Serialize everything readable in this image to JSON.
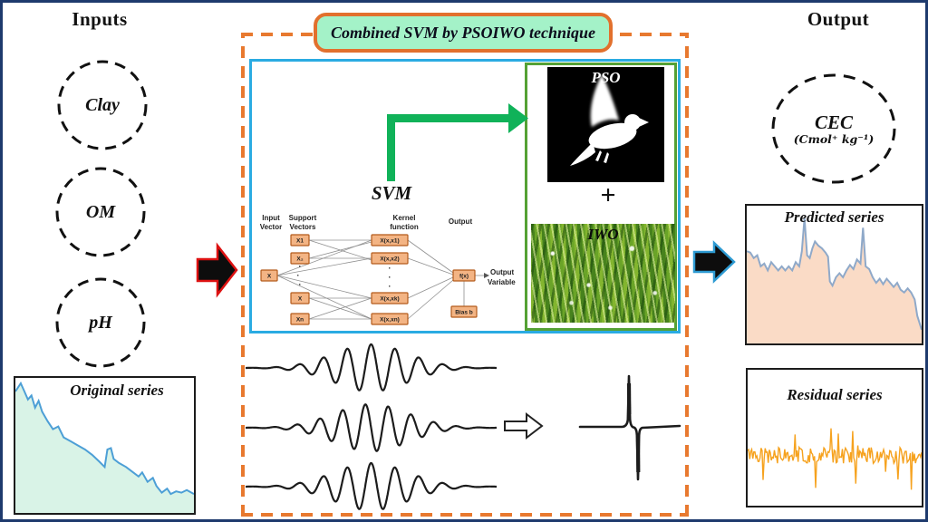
{
  "sections": {
    "inputs_title": "Inputs",
    "output_title": "Output"
  },
  "header": {
    "label": "Combined SVM by PSOIWO technique"
  },
  "inputs": {
    "items": [
      {
        "label": "Clay"
      },
      {
        "label": "OM"
      },
      {
        "label": "pH"
      }
    ]
  },
  "output_node": {
    "label": "CEC",
    "unit": "(Cmol⁺ kg⁻¹)"
  },
  "svm": {
    "title": "SVM",
    "col_input_line1": "Input",
    "col_input_line2": "Vector",
    "col_support_line1": "Support",
    "col_support_line2": "Vectors",
    "col_kernel_line1": "Kernel",
    "col_kernel_line2": "function",
    "col_output": "Output",
    "input_box": "X",
    "support_boxes": [
      "X1",
      "X₂",
      "X",
      "Xn"
    ],
    "kernel_boxes": [
      "X(x,x1)",
      "X(x,x2)",
      "X(x,xk)",
      "X(x,xn)"
    ],
    "fx_box": "f(x)",
    "bias_box": "Bias b",
    "output_var_line1": "Output",
    "output_var_line2": "Variable"
  },
  "optimizers": {
    "pso_label": "PSO",
    "plus": "+",
    "iwo_label": "IWO"
  },
  "charts": {
    "original_title": "Original series",
    "predicted_title": "Predicted series",
    "residual_title": "Residual series"
  },
  "chart_data": {
    "original": {
      "type": "area",
      "points": [
        [
          0,
          0.1
        ],
        [
          0.03,
          0.04
        ],
        [
          0.05,
          0.1
        ],
        [
          0.07,
          0.16
        ],
        [
          0.09,
          0.13
        ],
        [
          0.11,
          0.22
        ],
        [
          0.13,
          0.17
        ],
        [
          0.15,
          0.25
        ],
        [
          0.18,
          0.32
        ],
        [
          0.21,
          0.38
        ],
        [
          0.24,
          0.36
        ],
        [
          0.27,
          0.44
        ],
        [
          0.31,
          0.47
        ],
        [
          0.35,
          0.5
        ],
        [
          0.39,
          0.53
        ],
        [
          0.43,
          0.57
        ],
        [
          0.47,
          0.62
        ],
        [
          0.5,
          0.66
        ],
        [
          0.515,
          0.53
        ],
        [
          0.535,
          0.52
        ],
        [
          0.55,
          0.6
        ],
        [
          0.58,
          0.63
        ],
        [
          0.62,
          0.66
        ],
        [
          0.66,
          0.7
        ],
        [
          0.69,
          0.73
        ],
        [
          0.71,
          0.7
        ],
        [
          0.74,
          0.77
        ],
        [
          0.77,
          0.74
        ],
        [
          0.79,
          0.8
        ],
        [
          0.82,
          0.85
        ],
        [
          0.85,
          0.82
        ],
        [
          0.87,
          0.86
        ],
        [
          0.9,
          0.84
        ],
        [
          0.93,
          0.85
        ],
        [
          0.96,
          0.83
        ],
        [
          1,
          0.86
        ]
      ]
    },
    "predicted": {
      "type": "area",
      "points": [
        [
          0,
          0.33
        ],
        [
          0.02,
          0.34
        ],
        [
          0.04,
          0.38
        ],
        [
          0.06,
          0.36
        ],
        [
          0.08,
          0.44
        ],
        [
          0.1,
          0.42
        ],
        [
          0.12,
          0.47
        ],
        [
          0.14,
          0.41
        ],
        [
          0.16,
          0.44
        ],
        [
          0.18,
          0.47
        ],
        [
          0.2,
          0.44
        ],
        [
          0.22,
          0.47
        ],
        [
          0.24,
          0.44
        ],
        [
          0.26,
          0.47
        ],
        [
          0.28,
          0.41
        ],
        [
          0.3,
          0.44
        ],
        [
          0.315,
          0.33
        ],
        [
          0.33,
          0.09
        ],
        [
          0.345,
          0.36
        ],
        [
          0.36,
          0.38
        ],
        [
          0.375,
          0.31
        ],
        [
          0.39,
          0.26
        ],
        [
          0.41,
          0.29
        ],
        [
          0.43,
          0.31
        ],
        [
          0.45,
          0.34
        ],
        [
          0.465,
          0.37
        ],
        [
          0.475,
          0.55
        ],
        [
          0.49,
          0.58
        ],
        [
          0.51,
          0.52
        ],
        [
          0.53,
          0.49
        ],
        [
          0.55,
          0.52
        ],
        [
          0.57,
          0.47
        ],
        [
          0.59,
          0.43
        ],
        [
          0.61,
          0.46
        ],
        [
          0.63,
          0.39
        ],
        [
          0.65,
          0.42
        ],
        [
          0.665,
          0.16
        ],
        [
          0.68,
          0.44
        ],
        [
          0.7,
          0.46
        ],
        [
          0.72,
          0.52
        ],
        [
          0.74,
          0.56
        ],
        [
          0.76,
          0.53
        ],
        [
          0.78,
          0.57
        ],
        [
          0.8,
          0.53
        ],
        [
          0.82,
          0.56
        ],
        [
          0.84,
          0.59
        ],
        [
          0.86,
          0.56
        ],
        [
          0.88,
          0.61
        ],
        [
          0.9,
          0.63
        ],
        [
          0.92,
          0.6
        ],
        [
          0.94,
          0.63
        ],
        [
          0.96,
          0.68
        ],
        [
          0.975,
          0.8
        ],
        [
          1,
          0.9
        ]
      ]
    },
    "residual": {
      "type": "line",
      "seed": 9,
      "n": 170,
      "amp": 0.06,
      "spike_amp": 0.27,
      "spike_prob": 0.1,
      "center": 0.63
    },
    "wavelets": {
      "count": 3,
      "cycles": [
        10.5,
        11,
        10.5
      ],
      "amplitude": 26
    }
  },
  "colors": {
    "frame_navy": "#1e3a6d",
    "dashed_orange": "#e8792f",
    "header_fill": "#a4f2c8",
    "header_border": "#e2702d",
    "svm_panel_border": "#2aabe2",
    "optimizer_panel_border": "#55a135",
    "flow_green": "#10b259",
    "node_fill": "#f3b484",
    "node_border": "#b35b1b",
    "original_fill": "#d9f3e7",
    "original_line": "#4d9fd6",
    "predicted_fill": "#fadbc6",
    "predicted_line": "#8fa9c9",
    "residual_line": "#f6a21e",
    "signal_black": "#1c1c1c",
    "arrow_fill": "#0d0d0d",
    "arrow_outline_red": "#dd1111",
    "arrow_outline_blue": "#2d9ad2"
  }
}
